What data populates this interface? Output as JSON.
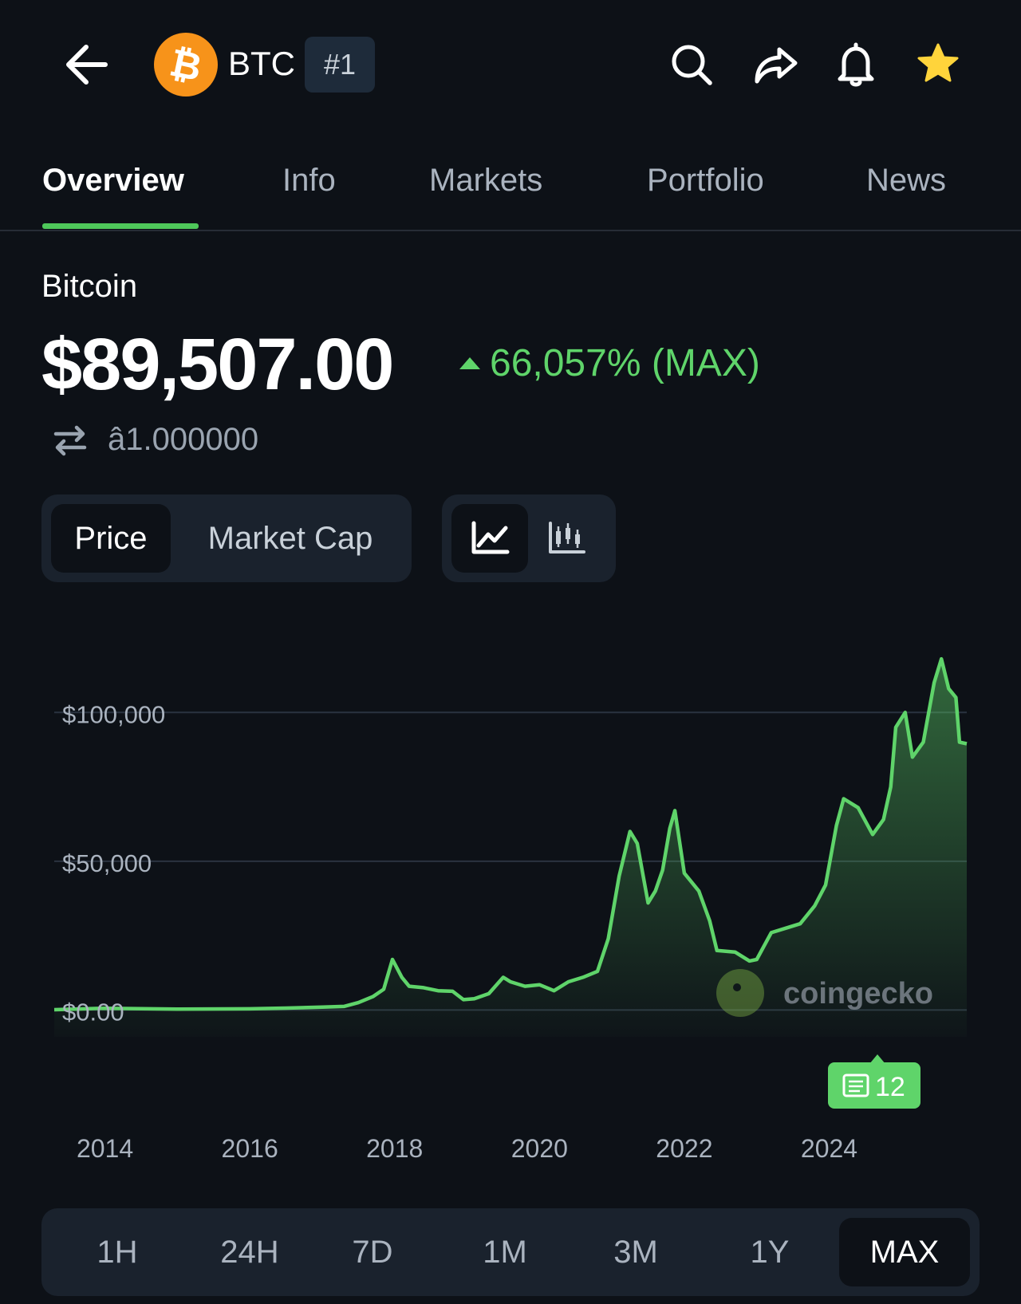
{
  "header": {
    "ticker": "BTC",
    "rank": "#1",
    "icons": [
      "back-arrow-icon",
      "bitcoin-logo",
      "search-icon",
      "share-icon",
      "bell-icon",
      "star-icon"
    ],
    "star_color": "#ffd43b",
    "coin_color": "#f7931a"
  },
  "tabs": [
    {
      "label": "Overview",
      "active": true
    },
    {
      "label": "Info",
      "active": false
    },
    {
      "label": "Markets",
      "active": false
    },
    {
      "label": "Portfolio",
      "active": false
    },
    {
      "label": "News",
      "active": false
    }
  ],
  "coin": {
    "name": "Bitcoin",
    "price": "$89,507.00",
    "change": "66,057% (MAX)",
    "btc_value": "â1.000000"
  },
  "toggle": {
    "price": "Price",
    "market_cap": "Market Cap"
  },
  "chart_types": {
    "line": "line-chart-icon",
    "candle": "candlestick-icon"
  },
  "timeframes": [
    "1H",
    "24H",
    "7D",
    "1M",
    "3M",
    "1Y",
    "MAX"
  ],
  "active_timeframe": "MAX",
  "watermark": "coingecko",
  "news_badge": "12",
  "accent_color": "#5fd46a",
  "chart_data": {
    "type": "area",
    "y_tick_labels": [
      "$100,000",
      "$50,000",
      "$0.00"
    ],
    "y_ticks": [
      100000,
      50000,
      0
    ],
    "ylim": [
      -9000,
      125000
    ],
    "xlim": [
      2013.3,
      2025.9
    ],
    "x_tick_labels": [
      "2014",
      "2016",
      "2018",
      "2020",
      "2022",
      "2024"
    ],
    "x_ticks": [
      2014,
      2016,
      2018,
      2020,
      2022,
      2024
    ],
    "series": [
      {
        "x": [
          2013.3,
          2014.0,
          2015.0,
          2016.0,
          2016.5,
          2017.0,
          2017.3,
          2017.5,
          2017.7,
          2017.85,
          2017.97,
          2018.1,
          2018.2,
          2018.4,
          2018.6,
          2018.8,
          2018.95,
          2019.1,
          2019.3,
          2019.5,
          2019.6,
          2019.8,
          2020.0,
          2020.2,
          2020.4,
          2020.6,
          2020.8,
          2020.95,
          2021.1,
          2021.25,
          2021.35,
          2021.5,
          2021.6,
          2021.7,
          2021.8,
          2021.87,
          2022.0,
          2022.2,
          2022.35,
          2022.45,
          2022.7,
          2022.9,
          2023.0,
          2023.2,
          2023.4,
          2023.6,
          2023.8,
          2023.95,
          2024.1,
          2024.2,
          2024.4,
          2024.6,
          2024.75,
          2024.85,
          2024.92,
          2025.05,
          2025.15,
          2025.3,
          2025.45,
          2025.55,
          2025.65,
          2025.75,
          2025.8,
          2025.9
        ],
        "y": [
          100,
          600,
          300,
          400,
          650,
          1000,
          1200,
          2500,
          4500,
          7000,
          17000,
          11000,
          8000,
          7500,
          6500,
          6300,
          3500,
          3800,
          5500,
          11000,
          9500,
          8000,
          8500,
          6500,
          9500,
          11000,
          13000,
          24000,
          45000,
          60000,
          56000,
          36000,
          40000,
          47000,
          61000,
          67000,
          46000,
          40000,
          30000,
          20000,
          19500,
          16500,
          17000,
          26000,
          27500,
          29000,
          35000,
          42000,
          62000,
          71000,
          68000,
          59000,
          64000,
          75000,
          95000,
          100000,
          85000,
          90000,
          110000,
          118000,
          108000,
          105000,
          90000,
          89500
        ]
      }
    ]
  }
}
